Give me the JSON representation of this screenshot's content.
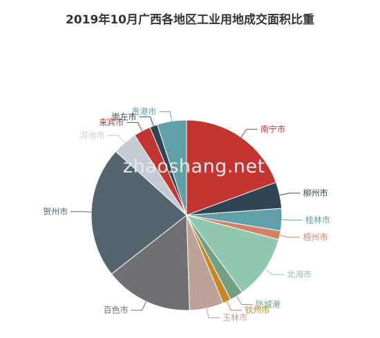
{
  "chart_data": {
    "type": "pie",
    "title": "2019年10月广西各地区工业用地成交面积比重",
    "legend": "none",
    "labels_outside": true,
    "slices": [
      {
        "name": "南宁市",
        "value": 19.5,
        "color": "#c23531"
      },
      {
        "name": "柳州市",
        "value": 4.5,
        "color": "#2f4554"
      },
      {
        "name": "桂林市",
        "value": 3.8,
        "color": "#61a0a8"
      },
      {
        "name": "梧州市",
        "value": 1.5,
        "color": "#d48265"
      },
      {
        "name": "北海市",
        "value": 11.0,
        "color": "#91c7ae"
      },
      {
        "name": "防城港",
        "value": 2.3,
        "color": "#749f83"
      },
      {
        "name": "钦州市",
        "value": 1.4,
        "color": "#ca8622"
      },
      {
        "name": "玉林市",
        "value": 5.8,
        "color": "#bda29a"
      },
      {
        "name": "百色市",
        "value": 15.0,
        "color": "#6e7074"
      },
      {
        "name": "贺州市",
        "value": 22.4,
        "color": "#546570"
      },
      {
        "name": "河池市",
        "value": 4.2,
        "color": "#c4ccd3"
      },
      {
        "name": "来宾市",
        "value": 2.9,
        "color": "#c23531"
      },
      {
        "name": "崇左市",
        "value": 1.3,
        "color": "#2f4554"
      },
      {
        "name": "贵港市",
        "value": 5.0,
        "color": "#61a0a8"
      }
    ]
  },
  "watermark": "zhaoshang.net"
}
